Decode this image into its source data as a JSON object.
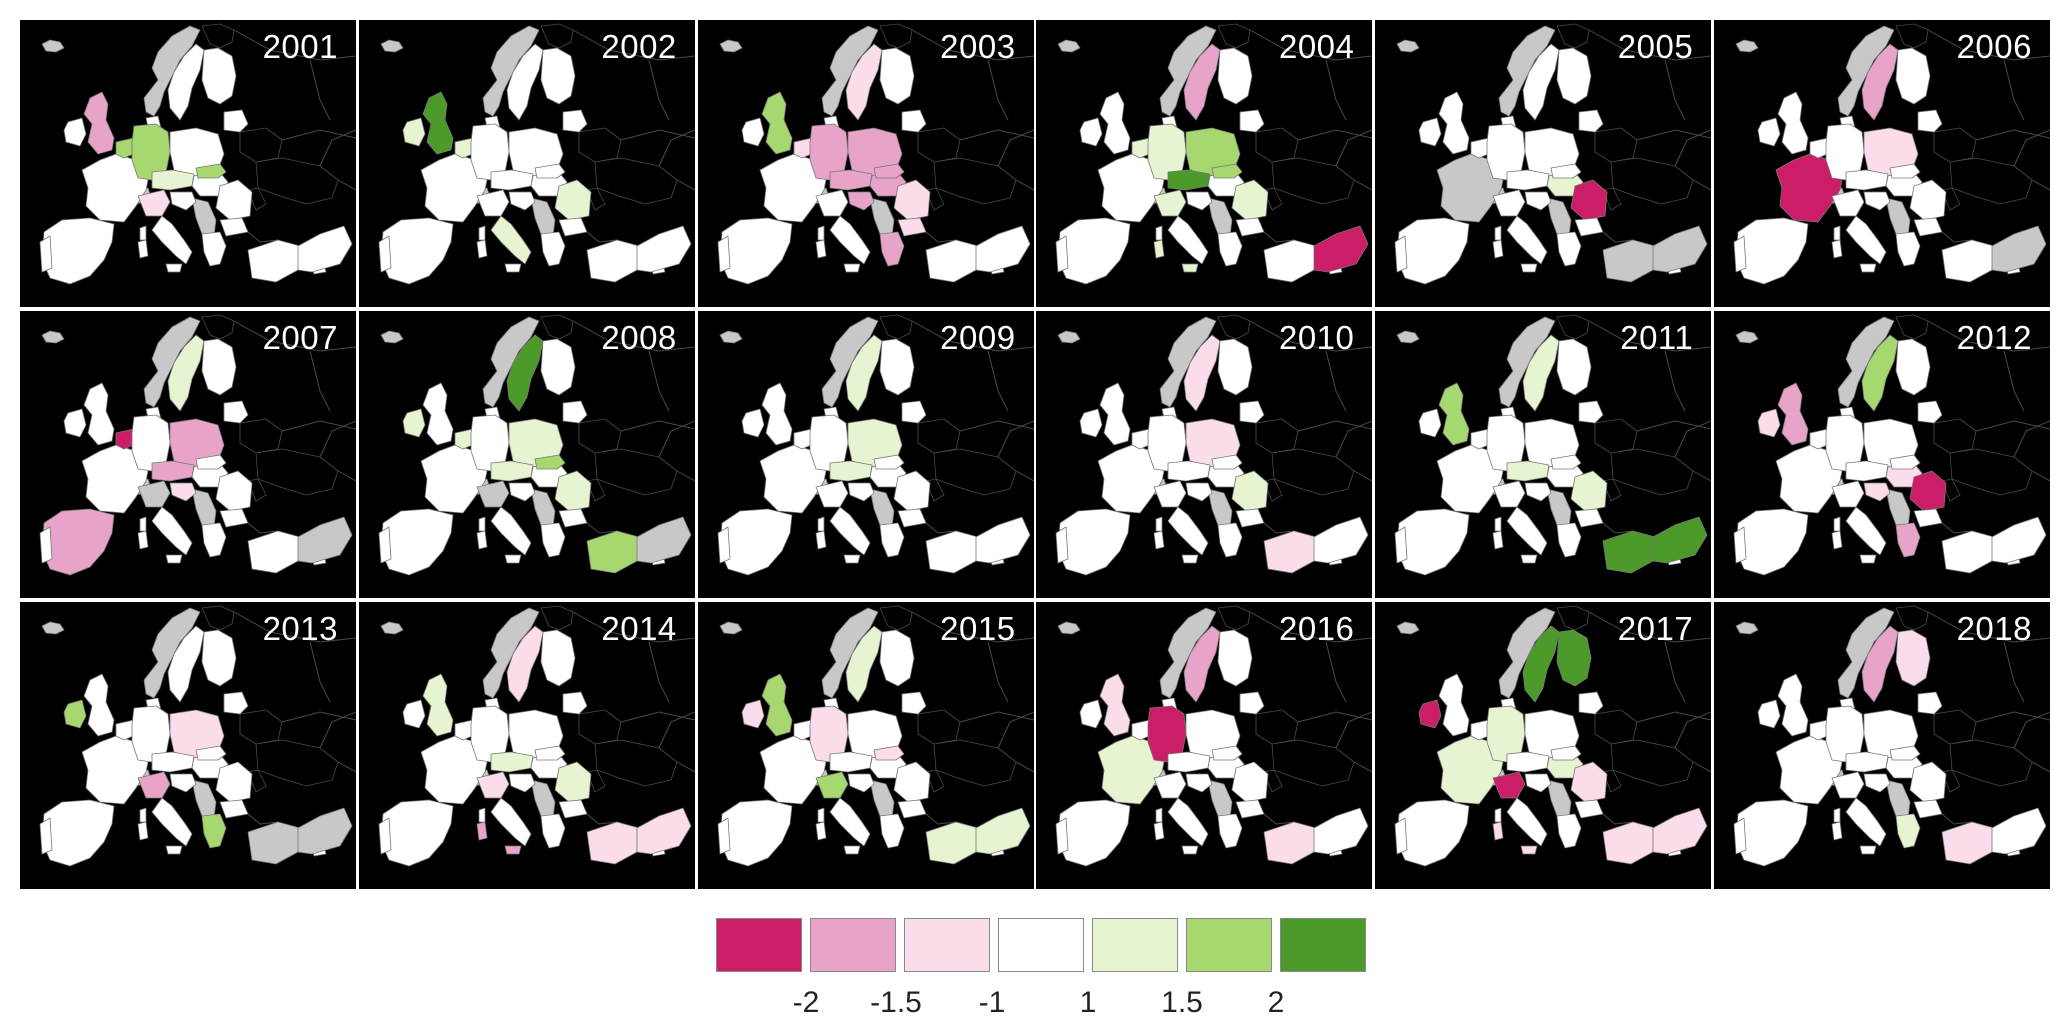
{
  "figure": {
    "panels": [
      {
        "year": "2001",
        "colors": [
          "w",
          "w",
          "w",
          "w",
          "w",
          "w",
          "w",
          "w",
          "w",
          "w",
          "w",
          "w",
          "w",
          "w",
          "w",
          "w",
          "m",
          "g",
          "g",
          "w",
          "l",
          "w",
          "g",
          "w",
          "w",
          "w",
          "p",
          "w",
          "w",
          "w",
          "w",
          "w",
          "w",
          "w"
        ]
      },
      {
        "year": "2002",
        "colors": [
          "w",
          "w",
          "w",
          "w",
          "w",
          "w",
          "w",
          "w",
          "w",
          "w",
          "w",
          "w",
          "l",
          "w",
          "w",
          "w",
          "D",
          "l",
          "w",
          "w",
          "w",
          "w",
          "w",
          "l",
          "w",
          "w",
          "w",
          "l",
          "w",
          "w",
          "w",
          "w",
          "w",
          "w"
        ]
      },
      {
        "year": "2003",
        "colors": [
          "w",
          "w",
          "w",
          "w",
          "w",
          "w",
          "w",
          "w",
          "w",
          "w",
          "w",
          "w",
          "w",
          "p",
          "w",
          "w",
          "g",
          "p",
          "m",
          "m",
          "m",
          "m",
          "m",
          "p",
          "p",
          "m",
          "w",
          "w",
          "m",
          "w",
          "w",
          "w",
          "w",
          "w"
        ]
      },
      {
        "year": "2004",
        "colors": [
          "w",
          "w",
          "w",
          "w",
          "w",
          "w",
          "w",
          "w",
          "w",
          "w",
          "w",
          "w",
          "w",
          "m",
          "w",
          "w",
          "w",
          "l",
          "l",
          "g",
          "G",
          "w",
          "g",
          "l",
          "w",
          "w",
          "l",
          "w",
          "w",
          "l",
          "w",
          "w",
          "w",
          "M"
        ]
      },
      {
        "year": "2005",
        "colors": [
          "w",
          "w",
          "w",
          "w",
          "w",
          "w",
          "w",
          "w",
          "w",
          "w",
          "w",
          "w",
          "w",
          "w",
          "w",
          "s",
          "w",
          "w",
          "w",
          "w",
          "w",
          "l",
          "w",
          "M",
          "w",
          "w",
          "w",
          "w",
          "w",
          "w",
          "w",
          "w",
          "s",
          "s"
        ]
      },
      {
        "year": "2006",
        "colors": [
          "w",
          "w",
          "w",
          "w",
          "w",
          "w",
          "w",
          "w",
          "w",
          "w",
          "w",
          "w",
          "w",
          "m",
          "w",
          "M",
          "w",
          "w",
          "w",
          "p",
          "w",
          "w",
          "w",
          "w",
          "w",
          "w",
          "w",
          "w",
          "w",
          "w",
          "w",
          "w",
          "w",
          "s"
        ]
      },
      {
        "year": "2007",
        "colors": [
          "w",
          "w",
          "w",
          "w",
          "w",
          "w",
          "w",
          "w",
          "w",
          "w",
          "w",
          "w",
          "w",
          "l",
          "w",
          "w",
          "w",
          "M",
          "w",
          "m",
          "m",
          "w",
          "w",
          "w",
          "w",
          "p",
          "s",
          "w",
          "w",
          "w",
          "m",
          "w",
          "w",
          "s"
        ]
      },
      {
        "year": "2008",
        "colors": [
          "w",
          "w",
          "w",
          "w",
          "w",
          "w",
          "w",
          "w",
          "w",
          "w",
          "w",
          "w",
          "l",
          "D",
          "w",
          "w",
          "w",
          "l",
          "w",
          "l",
          "l",
          "w",
          "g",
          "l",
          "w",
          "w",
          "s",
          "w",
          "w",
          "w",
          "w",
          "w",
          "g",
          "s"
        ]
      },
      {
        "year": "2009",
        "colors": [
          "w",
          "w",
          "w",
          "w",
          "w",
          "w",
          "w",
          "w",
          "w",
          "w",
          "w",
          "w",
          "w",
          "l",
          "w",
          "w",
          "w",
          "w",
          "w",
          "l",
          "l",
          "w",
          "w",
          "w",
          "w",
          "w",
          "w",
          "w",
          "w",
          "w",
          "w",
          "w",
          "w",
          "w"
        ]
      },
      {
        "year": "2010",
        "colors": [
          "w",
          "w",
          "w",
          "w",
          "w",
          "w",
          "w",
          "w",
          "w",
          "w",
          "w",
          "w",
          "w",
          "p",
          "w",
          "w",
          "w",
          "w",
          "w",
          "p",
          "w",
          "w",
          "w",
          "l",
          "w",
          "w",
          "w",
          "w",
          "w",
          "w",
          "w",
          "w",
          "p",
          "w"
        ]
      },
      {
        "year": "2011",
        "colors": [
          "w",
          "w",
          "w",
          "w",
          "w",
          "w",
          "w",
          "w",
          "w",
          "w",
          "w",
          "w",
          "w",
          "l",
          "w",
          "w",
          "g",
          "w",
          "w",
          "w",
          "l",
          "w",
          "w",
          "l",
          "w",
          "w",
          "w",
          "w",
          "w",
          "w",
          "w",
          "w",
          "G",
          "G"
        ]
      },
      {
        "year": "2012",
        "colors": [
          "w",
          "w",
          "w",
          "w",
          "w",
          "w",
          "w",
          "w",
          "w",
          "w",
          "w",
          "w",
          "p",
          "g",
          "w",
          "w",
          "m",
          "w",
          "w",
          "w",
          "w",
          "p",
          "w",
          "M",
          "w",
          "p",
          "w",
          "w",
          "m",
          "w",
          "w",
          "w",
          "w",
          "w"
        ]
      },
      {
        "year": "2013",
        "colors": [
          "w",
          "w",
          "w",
          "w",
          "w",
          "w",
          "w",
          "w",
          "w",
          "w",
          "w",
          "w",
          "g",
          "w",
          "w",
          "w",
          "w",
          "w",
          "w",
          "p",
          "w",
          "w",
          "w",
          "w",
          "w",
          "w",
          "m",
          "w",
          "g",
          "w",
          "w",
          "w",
          "s",
          "s"
        ]
      },
      {
        "year": "2014",
        "colors": [
          "w",
          "w",
          "w",
          "w",
          "w",
          "w",
          "w",
          "w",
          "w",
          "w",
          "w",
          "w",
          "w",
          "p",
          "w",
          "w",
          "l",
          "w",
          "w",
          "w",
          "l",
          "w",
          "w",
          "l",
          "w",
          "w",
          "p",
          "w",
          "w",
          "m",
          "w",
          "w",
          "p",
          "p"
        ]
      },
      {
        "year": "2015",
        "colors": [
          "w",
          "w",
          "w",
          "w",
          "w",
          "w",
          "w",
          "w",
          "w",
          "w",
          "w",
          "w",
          "p",
          "l",
          "w",
          "w",
          "g",
          "w",
          "p",
          "w",
          "w",
          "w",
          "p",
          "w",
          "w",
          "w",
          "g",
          "w",
          "w",
          "w",
          "w",
          "w",
          "l",
          "l"
        ]
      },
      {
        "year": "2016",
        "colors": [
          "w",
          "w",
          "w",
          "w",
          "w",
          "w",
          "w",
          "w",
          "w",
          "w",
          "w",
          "w",
          "w",
          "m",
          "w",
          "l",
          "p",
          "w",
          "M",
          "w",
          "w",
          "w",
          "w",
          "w",
          "w",
          "w",
          "w",
          "w",
          "w",
          "w",
          "w",
          "w",
          "p",
          "w"
        ]
      },
      {
        "year": "2017",
        "colors": [
          "w",
          "w",
          "w",
          "w",
          "w",
          "w",
          "w",
          "w",
          "w",
          "w",
          "w",
          "w",
          "M",
          "D",
          "D",
          "l",
          "w",
          "w",
          "l",
          "w",
          "w",
          "l",
          "w",
          "p",
          "w",
          "w",
          "M",
          "w",
          "w",
          "p",
          "w",
          "w",
          "p",
          "p"
        ]
      },
      {
        "year": "2018",
        "colors": [
          "w",
          "w",
          "w",
          "w",
          "w",
          "w",
          "w",
          "w",
          "w",
          "w",
          "w",
          "w",
          "w",
          "m",
          "p",
          "w",
          "w",
          "w",
          "w",
          "w",
          "w",
          "w",
          "w",
          "w",
          "w",
          "w",
          "w",
          "w",
          "l",
          "w",
          "w",
          "w",
          "p",
          "w"
        ]
      }
    ]
  },
  "legend": {
    "colors": [
      "#cc1d68",
      "#e8a3c9",
      "#fbdcea",
      "#ffffff",
      "#e6f4d2",
      "#a6d86f",
      "#4b9a2a"
    ],
    "ticks": [
      "-2",
      "-1.5",
      "-1",
      "1",
      "1.5",
      "2"
    ]
  }
}
